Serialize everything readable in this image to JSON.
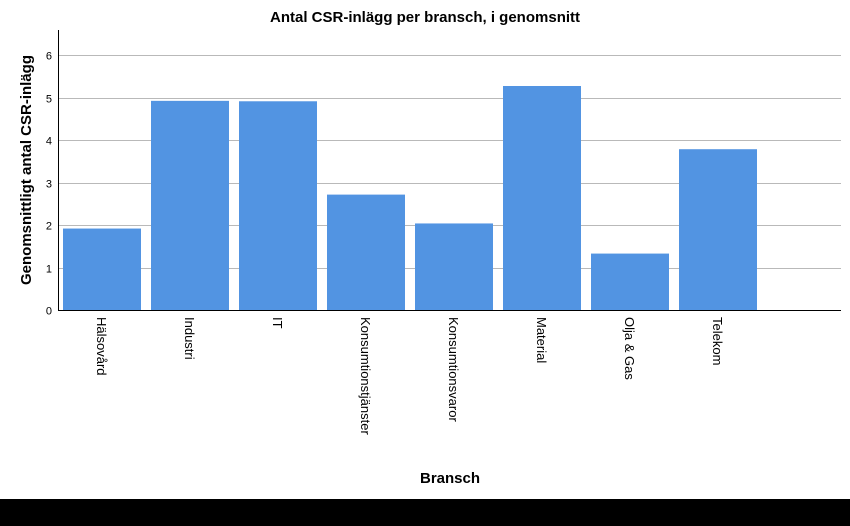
{
  "chart_data": {
    "type": "bar",
    "title": "Antal CSR-inlägg per bransch, i genomsnitt",
    "xlabel": "Bransch",
    "ylabel": "Genomsnittligt antal CSR-inlägg",
    "categories": [
      "Hälsovård",
      "Industri",
      "IT",
      "Konsumtionstjänster",
      "Konsumtionsvaror",
      "Material",
      "Olja & Gas",
      "Telekom"
    ],
    "values": [
      1.92,
      4.93,
      4.92,
      2.72,
      2.04,
      5.28,
      1.33,
      3.79
    ],
    "ylim": [
      0,
      6.6
    ],
    "yticks": [
      "0",
      "1",
      "2",
      "3",
      "4",
      "5",
      "6"
    ],
    "grid": true,
    "colors": {
      "bar": "#5294e2",
      "grid": "#b9b9b9",
      "axis": "#000000"
    }
  }
}
